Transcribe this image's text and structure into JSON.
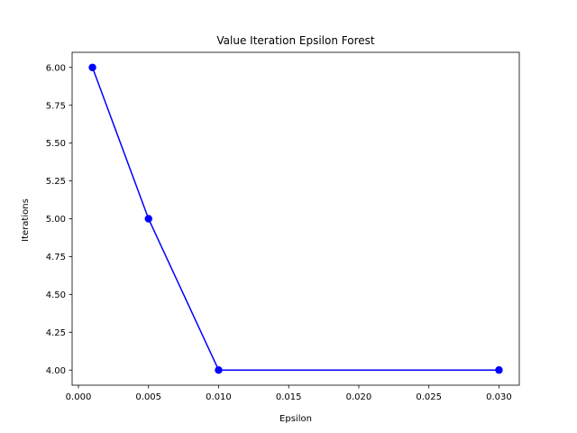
{
  "chart_data": {
    "type": "line",
    "title": "Value Iteration Epsilon Forest",
    "xlabel": "Epsilon",
    "ylabel": "Iterations",
    "x": [
      0.001,
      0.005,
      0.01,
      0.03
    ],
    "series": [
      {
        "values": [
          6,
          5,
          4,
          4
        ],
        "color": "#0000ff",
        "marker": "circle"
      }
    ],
    "xlim": [
      -0.00045,
      0.03145
    ],
    "ylim": [
      3.9,
      6.1
    ],
    "xticks": [
      0.0,
      0.005,
      0.01,
      0.015,
      0.02,
      0.025,
      0.03
    ],
    "xtick_labels": [
      "0.000",
      "0.005",
      "0.010",
      "0.015",
      "0.020",
      "0.025",
      "0.030"
    ],
    "yticks": [
      4.0,
      4.25,
      4.5,
      4.75,
      5.0,
      5.25,
      5.5,
      5.75,
      6.0
    ],
    "ytick_labels": [
      "4.00",
      "4.25",
      "4.50",
      "4.75",
      "5.00",
      "5.25",
      "5.50",
      "5.75",
      "6.00"
    ],
    "grid": false,
    "legend": false
  }
}
